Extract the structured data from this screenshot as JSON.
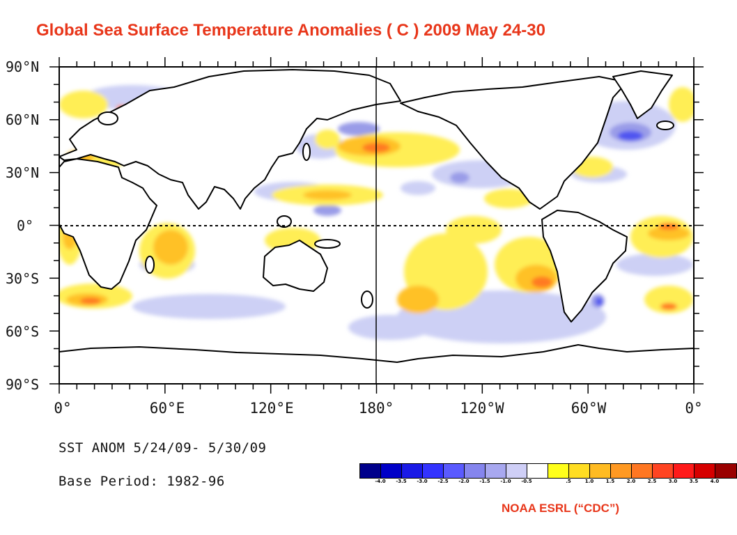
{
  "title": "Global Sea Surface Temperature Anomalies ( C )  2009 May 24-30",
  "map": {
    "projection": "equirectangular",
    "lon_range": [
      0,
      360
    ],
    "lat_range": [
      -90,
      90
    ],
    "equator_line": "dashed",
    "dateline_line": "solid",
    "lat_labels": [
      "90°N",
      "60°N",
      "30°N",
      "0°",
      "30°S",
      "60°S",
      "90°S"
    ],
    "lon_labels": [
      "0°",
      "60°E",
      "120°E",
      "180°",
      "120°W",
      "60°W",
      "0°"
    ]
  },
  "info": {
    "line1": "SST ANOM  5/24/09- 5/30/09",
    "line2": "Base Period: 1982-96"
  },
  "legend": {
    "colors": [
      "#00008b",
      "#0000c8",
      "#1a1ae6",
      "#3333ff",
      "#5a5aff",
      "#8585ee",
      "#a8a8f0",
      "#cfcff7",
      "#ffffff",
      "#ffff1a",
      "#ffdd22",
      "#ffbb22",
      "#ff9922",
      "#ff7722",
      "#ff4422",
      "#ff1a1a",
      "#d60000",
      "#9a0000"
    ],
    "ticks": [
      "-4.0",
      "-3.5",
      "-3.0",
      "-2.5",
      "-2.0",
      "-1.5",
      "-1.0",
      "-0.5",
      ".5",
      "1.0",
      "1.5",
      "2.0",
      "2.5",
      "3.0",
      "3.5",
      "4.0"
    ]
  },
  "credit": "NOAA ESRL (“CDC”)"
}
